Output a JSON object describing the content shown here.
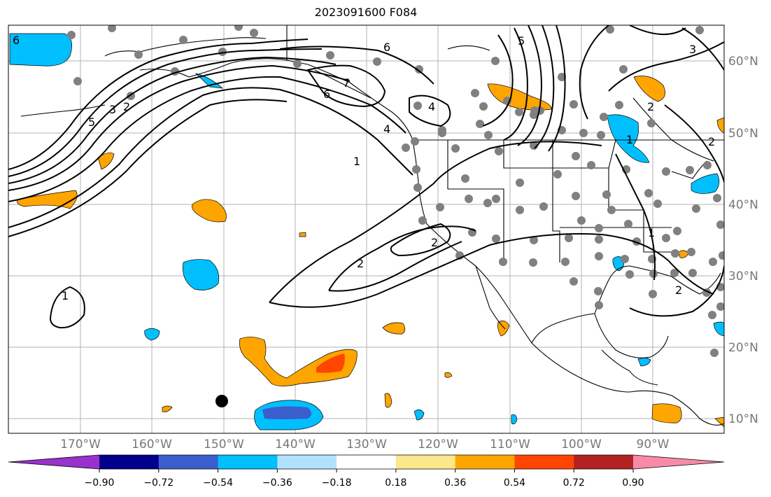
{
  "title": "2023091600 F084",
  "map": {
    "lon_labels": [
      "170°W",
      "160°W",
      "150°W",
      "140°W",
      "130°W",
      "120°W",
      "110°W",
      "100°W",
      "90°W"
    ],
    "lat_labels": [
      "60°N",
      "50°N",
      "40°N",
      "30°N",
      "20°N",
      "10°N"
    ],
    "contour_labels": [
      "6",
      "5",
      "3",
      "2",
      "1",
      "1",
      "2",
      "2",
      "6",
      "7",
      "4",
      "5",
      "4",
      "2",
      "1",
      "3",
      "2",
      "1",
      "2",
      "6"
    ]
  },
  "colorbar": {
    "colors": [
      "#9932cc",
      "#00008b",
      "#3a5fcd",
      "#00bfff",
      "#b0e2ff",
      "#ffffff",
      "#fbe78c",
      "#ffa500",
      "#ff4500",
      "#b22222",
      "#f88aa8"
    ],
    "labels": [
      "−0.90",
      "−0.72",
      "−0.54",
      "−0.36",
      "−0.18",
      "0.18",
      "0.36",
      "0.54",
      "0.72",
      "0.90"
    ]
  }
}
